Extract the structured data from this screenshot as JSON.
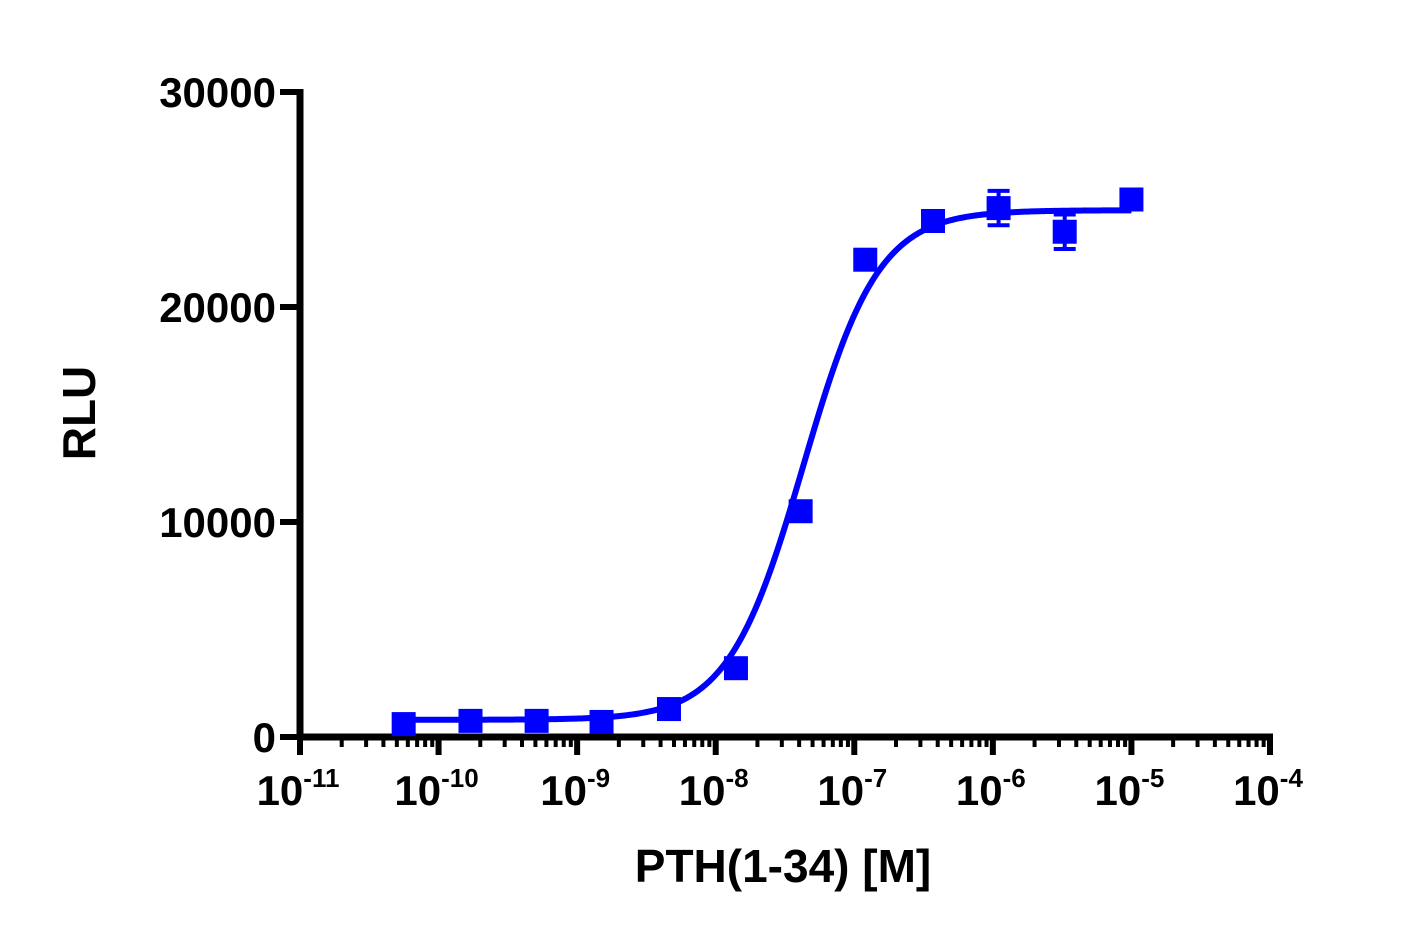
{
  "chart_data": {
    "type": "scatter",
    "xscale": "log",
    "xlabel": "PTH(1-34) [M]",
    "ylabel": "RLU",
    "xlim": [
      1e-11,
      0.0001
    ],
    "ylim": [
      0,
      30000
    ],
    "x_ticks": [
      {
        "base": "10",
        "exp": "-11",
        "value": 1e-11
      },
      {
        "base": "10",
        "exp": "-10",
        "value": 1e-10
      },
      {
        "base": "10",
        "exp": "-9",
        "value": 1e-09
      },
      {
        "base": "10",
        "exp": "-8",
        "value": 1e-08
      },
      {
        "base": "10",
        "exp": "-7",
        "value": 1e-07
      },
      {
        "base": "10",
        "exp": "-6",
        "value": 1e-06
      },
      {
        "base": "10",
        "exp": "-5",
        "value": 1e-05
      },
      {
        "base": "10",
        "exp": "-4",
        "value": 0.0001
      }
    ],
    "y_ticks": [
      {
        "label": "0",
        "value": 0
      },
      {
        "label": "10000",
        "value": 10000
      },
      {
        "label": "20000",
        "value": 20000
      },
      {
        "label": "30000",
        "value": 30000
      }
    ],
    "series": [
      {
        "color": "#0000ff",
        "marker": "square",
        "points": [
          {
            "x": 5.6e-11,
            "y": 600,
            "err": 150
          },
          {
            "x": 1.7e-10,
            "y": 750,
            "err": 150
          },
          {
            "x": 5.1e-10,
            "y": 750,
            "err": 150
          },
          {
            "x": 1.5e-09,
            "y": 700,
            "err": 150
          },
          {
            "x": 4.6e-09,
            "y": 1300,
            "err": 200
          },
          {
            "x": 1.4e-08,
            "y": 3200,
            "err": 250
          },
          {
            "x": 4.1e-08,
            "y": 10500,
            "err": 300
          },
          {
            "x": 1.2e-07,
            "y": 22200,
            "err": 400
          },
          {
            "x": 3.7e-07,
            "y": 24000,
            "err": 400
          },
          {
            "x": 1.1e-06,
            "y": 24600,
            "err": 800
          },
          {
            "x": 3.3e-06,
            "y": 23500,
            "err": 800
          },
          {
            "x": 1e-05,
            "y": 25000,
            "err": 300
          }
        ],
        "fit": {
          "model": "four-parameter logistic",
          "bottom": 800,
          "top": 24500,
          "ec50": 4.3e-08,
          "hill": 1.6,
          "x_range": [
            5.6e-11,
            1e-05
          ]
        }
      }
    ]
  }
}
